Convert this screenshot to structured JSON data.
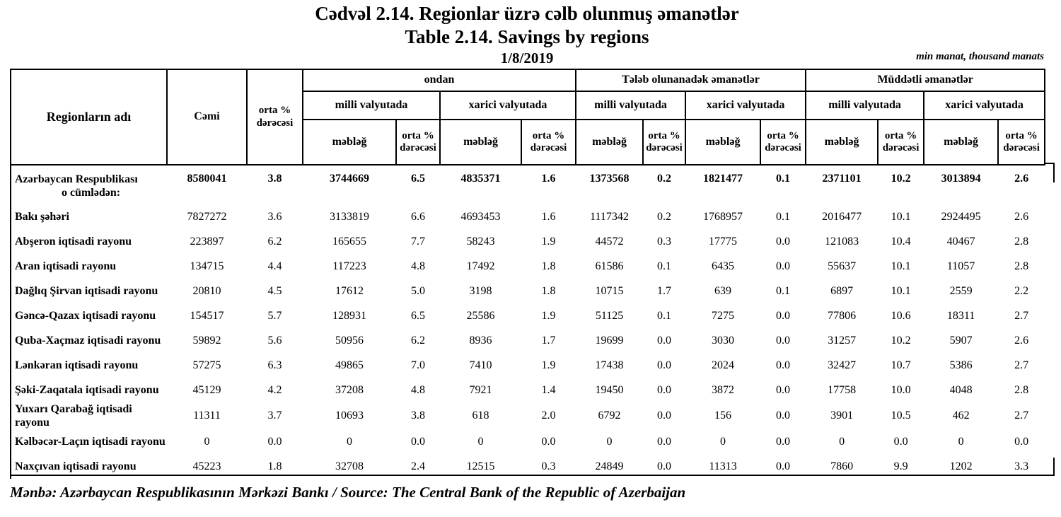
{
  "colors": {
    "text": "#000000",
    "background": "#ffffff",
    "border": "#000000"
  },
  "title": {
    "line1_az": "Cədvəl 2.14. Regionlar üzrə cəlb olunmuş əmanətlər",
    "line2_en": "Table 2.14. Savings by regions",
    "date": "1/8/2019",
    "unit_note": "min manat, thousand manats"
  },
  "table": {
    "header": {
      "region": "Regionların adı",
      "total": "Cəmi",
      "avg_rate": "orta % dərəcəsi",
      "group_ondan": "ondan",
      "group_demand": "Tələb olunanadək əmanətlər",
      "group_term": "Müddətli əmanətlər",
      "sub_national": "milli valyutada",
      "sub_foreign": "xarici valyutada",
      "amount": "məbləğ",
      "rate": "orta % dərəcəsi"
    },
    "rows": [
      {
        "name": "Azərbaycan Respublikası",
        "subname": "o cümlədən:",
        "bold": true,
        "values": [
          "8580041",
          "3.8",
          "3744669",
          "6.5",
          "4835371",
          "1.6",
          "1373568",
          "0.2",
          "1821477",
          "0.1",
          "2371101",
          "10.2",
          "3013894",
          "2.6"
        ]
      },
      {
        "name": "Bakı şəhəri",
        "bold": false,
        "values": [
          "7827272",
          "3.6",
          "3133819",
          "6.6",
          "4693453",
          "1.6",
          "1117342",
          "0.2",
          "1768957",
          "0.1",
          "2016477",
          "10.1",
          "2924495",
          "2.6"
        ]
      },
      {
        "name": "Abşeron iqtisadi rayonu",
        "bold": false,
        "values": [
          "223897",
          "6.2",
          "165655",
          "7.7",
          "58243",
          "1.9",
          "44572",
          "0.3",
          "17775",
          "0.0",
          "121083",
          "10.4",
          "40467",
          "2.8"
        ]
      },
      {
        "name": "Aran iqtisadi rayonu",
        "bold": false,
        "values": [
          "134715",
          "4.4",
          "117223",
          "4.8",
          "17492",
          "1.8",
          "61586",
          "0.1",
          "6435",
          "0.0",
          "55637",
          "10.1",
          "11057",
          "2.8"
        ]
      },
      {
        "name": "Dağlıq Şirvan iqtisadi rayonu",
        "bold": false,
        "values": [
          "20810",
          "4.5",
          "17612",
          "5.0",
          "3198",
          "1.8",
          "10715",
          "1.7",
          "639",
          "0.1",
          "6897",
          "10.1",
          "2559",
          "2.2"
        ]
      },
      {
        "name": "Gəncə-Qazax iqtisadi rayonu",
        "bold": false,
        "values": [
          "154517",
          "5.7",
          "128931",
          "6.5",
          "25586",
          "1.9",
          "51125",
          "0.1",
          "7275",
          "0.0",
          "77806",
          "10.6",
          "18311",
          "2.7"
        ]
      },
      {
        "name": "Quba-Xaçmaz iqtisadi rayonu",
        "bold": false,
        "values": [
          "59892",
          "5.6",
          "50956",
          "6.2",
          "8936",
          "1.7",
          "19699",
          "0.0",
          "3030",
          "0.0",
          "31257",
          "10.2",
          "5907",
          "2.6"
        ]
      },
      {
        "name": "Lənkəran iqtisadi rayonu",
        "bold": false,
        "values": [
          "57275",
          "6.3",
          "49865",
          "7.0",
          "7410",
          "1.9",
          "17438",
          "0.0",
          "2024",
          "0.0",
          "32427",
          "10.7",
          "5386",
          "2.7"
        ]
      },
      {
        "name": "Şəki-Zaqatala iqtisadi rayonu",
        "bold": false,
        "values": [
          "45129",
          "4.2",
          "37208",
          "4.8",
          "7921",
          "1.4",
          "19450",
          "0.0",
          "3872",
          "0.0",
          "17758",
          "10.0",
          "4048",
          "2.8"
        ]
      },
      {
        "name": "Yuxarı Qarabağ iqtisadi rayonu",
        "bold": false,
        "values": [
          "11311",
          "3.7",
          "10693",
          "3.8",
          "618",
          "2.0",
          "6792",
          "0.0",
          "156",
          "0.0",
          "3901",
          "10.5",
          "462",
          "2.7"
        ]
      },
      {
        "name": "Kəlbəcər-Laçın iqtisadi rayonu",
        "bold": false,
        "values": [
          "0",
          "0.0",
          "0",
          "0.0",
          "0",
          "0.0",
          "0",
          "0.0",
          "0",
          "0.0",
          "0",
          "0.0",
          "0",
          "0.0"
        ]
      },
      {
        "name": "Naxçıvan iqtisadi rayonu",
        "bold": false,
        "values": [
          "45223",
          "1.8",
          "32708",
          "2.4",
          "12515",
          "0.3",
          "24849",
          "0.0",
          "11313",
          "0.0",
          "7860",
          "9.9",
          "1202",
          "3.3"
        ]
      }
    ]
  },
  "footer": {
    "source": "Mənbə: Azərbaycan Respublikasının Mərkəzi Bankı / Source: The Central Bank of the Republic of Azerbaijan"
  }
}
